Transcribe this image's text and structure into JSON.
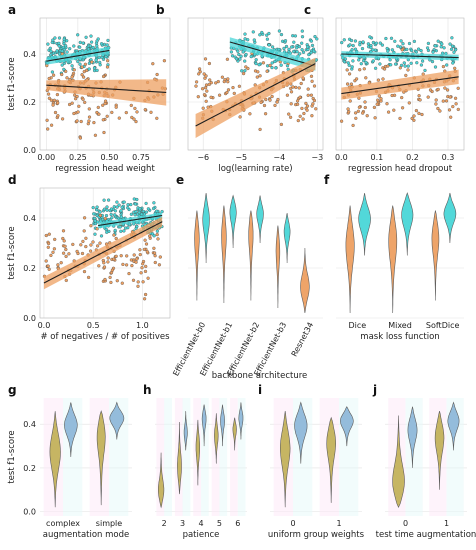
{
  "colors": {
    "cyan": "#49d6d8",
    "orange": "#eea062",
    "dark": "#1e1e1e",
    "pink_bg": "#fde7f7",
    "cyan_bg": "#e5fafa"
  },
  "chart_data": [
    {
      "id": "a",
      "type": "scatter",
      "panel_label": "a",
      "xlabel": "regression head weight",
      "ylabel": "test f1-score",
      "xlim": [
        -0.05,
        0.98
      ],
      "ylim": [
        0.0,
        0.55
      ],
      "xticks": [
        0.0,
        0.25,
        0.5,
        0.75
      ],
      "xtick_labels": [
        "0.00",
        "0.25",
        "0.50",
        "0.75"
      ],
      "yticks": [
        0.0,
        0.2,
        0.4
      ],
      "ytick_labels": [
        "0.0",
        "0.2",
        "0.4"
      ],
      "clusters": [
        {
          "color": "cyan",
          "x": [
            0,
            0.5
          ],
          "y": [
            0.3,
            0.5
          ],
          "n": 190
        },
        {
          "color": "orange",
          "x": [
            0,
            0.5
          ],
          "y": [
            0.02,
            0.45
          ],
          "n": 120
        },
        {
          "color": "orange",
          "x": [
            0.5,
            0.95
          ],
          "y": [
            0.02,
            0.45
          ],
          "n": 35
        }
      ],
      "fits": [
        {
          "color": "cyan",
          "x": [
            0.0,
            0.5
          ],
          "y": [
            0.37,
            0.415
          ],
          "band": 0.015
        },
        {
          "color": "orange",
          "x": [
            0.0,
            0.95
          ],
          "y": [
            0.27,
            0.24
          ],
          "band_start": 0.02,
          "band_end": 0.055
        }
      ]
    },
    {
      "id": "b",
      "type": "scatter",
      "panel_label": "b",
      "xlabel": "log(learning rate)",
      "ylabel": "",
      "xlim": [
        -6.4,
        -2.85
      ],
      "ylim": [
        0.0,
        0.55
      ],
      "xticks": [
        -6,
        -5,
        -4,
        -3
      ],
      "xtick_labels": [
        "−6",
        "−5",
        "−4",
        "−3"
      ],
      "yticks": [
        0.0,
        0.2,
        0.4
      ],
      "ytick_labels": [],
      "clusters": [
        {
          "color": "cyan",
          "x": [
            -5.3,
            -3.0
          ],
          "y": [
            0.3,
            0.52
          ],
          "n": 170
        },
        {
          "color": "orange",
          "x": [
            -6.2,
            -3.0
          ],
          "y": [
            0.03,
            0.43
          ],
          "n": 160
        }
      ],
      "fits": [
        {
          "color": "cyan",
          "x": [
            -5.3,
            -3.05
          ],
          "y": [
            0.45,
            0.35
          ],
          "band": 0.02
        },
        {
          "color": "orange",
          "x": [
            -6.2,
            -3.05
          ],
          "y": [
            0.1,
            0.36
          ],
          "band_start": 0.05,
          "band_end": 0.025
        }
      ]
    },
    {
      "id": "c",
      "type": "scatter",
      "panel_label": "c",
      "xlabel": "regression head dropout",
      "ylabel": "",
      "xlim": [
        -0.015,
        0.345
      ],
      "ylim": [
        0.0,
        0.55
      ],
      "xticks": [
        0.0,
        0.1,
        0.2,
        0.3
      ],
      "xtick_labels": [
        "0.0",
        "0.1",
        "0.2",
        "0.3"
      ],
      "yticks": [
        0.0,
        0.2,
        0.4
      ],
      "ytick_labels": [],
      "clusters": [
        {
          "color": "cyan",
          "x": [
            0,
            0.33
          ],
          "y": [
            0.3,
            0.5
          ],
          "n": 170
        },
        {
          "color": "orange",
          "x": [
            0,
            0.33
          ],
          "y": [
            0.03,
            0.45
          ],
          "n": 130
        }
      ],
      "fits": [
        {
          "color": "cyan",
          "x": [
            0.0,
            0.33
          ],
          "y": [
            0.4,
            0.385
          ],
          "band": 0.012
        },
        {
          "color": "orange",
          "x": [
            0.0,
            0.33
          ],
          "y": [
            0.235,
            0.305
          ],
          "band_start": 0.025,
          "band_end": 0.03
        }
      ]
    },
    {
      "id": "d",
      "type": "scatter",
      "panel_label": "d",
      "xlabel": "# of negatives / # of positives",
      "ylabel": "test f1-score",
      "xlim": [
        -0.04,
        1.28
      ],
      "ylim": [
        0.0,
        0.52
      ],
      "xticks": [
        0.0,
        0.5,
        1.0
      ],
      "xtick_labels": [
        "0.0",
        "0.5",
        "1.0"
      ],
      "yticks": [
        0.0,
        0.2,
        0.4
      ],
      "ytick_labels": [
        "0.0",
        "0.2",
        "0.4"
      ],
      "clusters": [
        {
          "color": "cyan",
          "x": [
            0.5,
            1.2
          ],
          "y": [
            0.3,
            0.5
          ],
          "n": 230
        },
        {
          "color": "orange",
          "x": [
            0.0,
            1.2
          ],
          "y": [
            0.05,
            0.45
          ],
          "n": 150
        }
      ],
      "fits": [
        {
          "color": "cyan",
          "x": [
            0.55,
            1.2
          ],
          "y": [
            0.37,
            0.41
          ],
          "band": 0.012
        },
        {
          "color": "orange",
          "x": [
            0.0,
            1.2
          ],
          "y": [
            0.14,
            0.385
          ],
          "band_start": 0.025,
          "band_end": 0.02
        }
      ]
    },
    {
      "id": "e",
      "type": "violin",
      "panel_label": "e",
      "xlabel": "backbone architecture",
      "ylabel": "",
      "ylim": [
        0.0,
        0.52
      ],
      "yticks": [
        0.0,
        0.2,
        0.4
      ],
      "categories": [
        "EfficientNet-b0",
        "EfficientNet-b1",
        "EfficientNet-b2",
        "EfficientNet-b3",
        "Resnet34"
      ],
      "violins": [
        {
          "cat": 0,
          "color": "orange",
          "min": 0.07,
          "max": 0.43,
          "peak": 0.33,
          "w": 0.75
        },
        {
          "cat": 0,
          "color": "cyan",
          "min": 0.22,
          "max": 0.5,
          "peak": 0.4,
          "w": 1.0
        },
        {
          "cat": 1,
          "color": "orange",
          "min": 0.06,
          "max": 0.45,
          "peak": 0.34,
          "w": 0.75
        },
        {
          "cat": 1,
          "color": "cyan",
          "min": 0.28,
          "max": 0.49,
          "peak": 0.43,
          "w": 1.0
        },
        {
          "cat": 2,
          "color": "orange",
          "min": 0.07,
          "max": 0.43,
          "peak": 0.35,
          "w": 0.75
        },
        {
          "cat": 2,
          "color": "cyan",
          "min": 0.3,
          "max": 0.49,
          "peak": 0.42,
          "w": 1.0
        },
        {
          "cat": 3,
          "color": "orange",
          "min": 0.04,
          "max": 0.37,
          "peak": 0.28,
          "w": 0.6
        },
        {
          "cat": 3,
          "color": "cyan",
          "min": 0.22,
          "max": 0.42,
          "peak": 0.35,
          "w": 0.9
        },
        {
          "cat": 4,
          "color": "orange",
          "min": 0.02,
          "max": 0.28,
          "peak": 0.12,
          "w": 1.3
        }
      ]
    },
    {
      "id": "f",
      "type": "violin",
      "panel_label": "f",
      "xlabel": "mask loss function",
      "ylabel": "",
      "ylim": [
        0.0,
        0.52
      ],
      "yticks": [
        0.0,
        0.2,
        0.4
      ],
      "categories": [
        "Dice",
        "Mixed",
        "SoftDice"
      ],
      "violins": [
        {
          "cat": 0,
          "color": "orange",
          "min": 0.02,
          "max": 0.45,
          "peak": 0.3,
          "w": 0.8
        },
        {
          "cat": 0,
          "color": "cyan",
          "min": 0.25,
          "max": 0.5,
          "peak": 0.4,
          "w": 1.1
        },
        {
          "cat": 1,
          "color": "orange",
          "min": 0.02,
          "max": 0.45,
          "peak": 0.32,
          "w": 0.8
        },
        {
          "cat": 1,
          "color": "cyan",
          "min": 0.25,
          "max": 0.5,
          "peak": 0.42,
          "w": 1.1
        },
        {
          "cat": 2,
          "color": "orange",
          "min": 0.07,
          "max": 0.43,
          "peak": 0.33,
          "w": 0.7
        },
        {
          "cat": 2,
          "color": "cyan",
          "min": 0.3,
          "max": 0.5,
          "peak": 0.42,
          "w": 1.1
        }
      ]
    },
    {
      "id": "g",
      "type": "violin",
      "panel_label": "g",
      "xlabel": "augmentation mode",
      "ylabel": "test f1-score",
      "ylim": [
        -0.02,
        0.52
      ],
      "yticks": [
        0.0,
        0.2,
        0.4
      ],
      "ytick_labels": [
        "0.0",
        "0.2",
        "0.4"
      ],
      "categories": [
        "complex",
        "simple"
      ],
      "violins": [
        {
          "cat": 0,
          "color": "olive",
          "min": 0.02,
          "max": 0.46,
          "peak": 0.28,
          "w": 0.9
        },
        {
          "cat": 0,
          "color": "blue",
          "min": 0.25,
          "max": 0.5,
          "peak": 0.4,
          "w": 1.1
        },
        {
          "cat": 1,
          "color": "olive",
          "min": 0.03,
          "max": 0.46,
          "peak": 0.36,
          "w": 0.8
        },
        {
          "cat": 1,
          "color": "blue",
          "min": 0.33,
          "max": 0.5,
          "peak": 0.43,
          "w": 1.2
        }
      ]
    },
    {
      "id": "h",
      "type": "violin",
      "panel_label": "h",
      "xlabel": "patience",
      "ylabel": "",
      "ylim": [
        -0.02,
        0.52
      ],
      "yticks": [
        0.0,
        0.2,
        0.4
      ],
      "categories": [
        "2",
        "3",
        "4",
        "5",
        "6"
      ],
      "violins": [
        {
          "cat": 0,
          "color": "olive",
          "min": 0.02,
          "max": 0.27,
          "peak": 0.09,
          "w": 1.3
        },
        {
          "cat": 1,
          "color": "olive",
          "min": 0.08,
          "max": 0.41,
          "peak": 0.2,
          "w": 0.9
        },
        {
          "cat": 1,
          "color": "blue",
          "min": 0.28,
          "max": 0.46,
          "peak": 0.36,
          "w": 0.7
        },
        {
          "cat": 2,
          "color": "olive",
          "min": 0.12,
          "max": 0.42,
          "peak": 0.3,
          "w": 0.8
        },
        {
          "cat": 2,
          "color": "blue",
          "min": 0.3,
          "max": 0.49,
          "peak": 0.43,
          "w": 0.9
        },
        {
          "cat": 3,
          "color": "olive",
          "min": 0.22,
          "max": 0.45,
          "peak": 0.35,
          "w": 0.8
        },
        {
          "cat": 3,
          "color": "blue",
          "min": 0.3,
          "max": 0.49,
          "peak": 0.42,
          "w": 0.9
        },
        {
          "cat": 4,
          "color": "olive",
          "min": 0.28,
          "max": 0.43,
          "peak": 0.38,
          "w": 0.8
        },
        {
          "cat": 4,
          "color": "blue",
          "min": 0.33,
          "max": 0.5,
          "peak": 0.43,
          "w": 0.9
        }
      ]
    },
    {
      "id": "i",
      "type": "violin",
      "panel_label": "i",
      "xlabel": "uniform group weights",
      "ylabel": "",
      "ylim": [
        -0.02,
        0.52
      ],
      "yticks": [
        0.0,
        0.2,
        0.4
      ],
      "categories": [
        "0",
        "1"
      ],
      "violins": [
        {
          "cat": 0,
          "color": "olive",
          "min": 0.02,
          "max": 0.46,
          "peak": 0.3,
          "w": 0.85
        },
        {
          "cat": 0,
          "color": "blue",
          "min": 0.22,
          "max": 0.5,
          "peak": 0.4,
          "w": 1.1
        },
        {
          "cat": 1,
          "color": "olive",
          "min": 0.04,
          "max": 0.43,
          "peak": 0.33,
          "w": 0.85
        },
        {
          "cat": 1,
          "color": "blue",
          "min": 0.3,
          "max": 0.48,
          "peak": 0.42,
          "w": 1.15
        }
      ]
    },
    {
      "id": "j",
      "type": "violin",
      "panel_label": "j",
      "xlabel": "test time augmentation",
      "ylabel": "",
      "ylim": [
        -0.02,
        0.52
      ],
      "yticks": [
        0.0,
        0.2,
        0.4
      ],
      "categories": [
        "0",
        "1"
      ],
      "violins": [
        {
          "cat": 0,
          "color": "olive",
          "min": 0.02,
          "max": 0.44,
          "peak": 0.12,
          "w": 1.3
        },
        {
          "cat": 0,
          "color": "blue",
          "min": 0.2,
          "max": 0.48,
          "peak": 0.38,
          "w": 0.9
        },
        {
          "cat": 1,
          "color": "olive",
          "min": 0.1,
          "max": 0.46,
          "peak": 0.35,
          "w": 0.9
        },
        {
          "cat": 1,
          "color": "blue",
          "min": 0.28,
          "max": 0.5,
          "peak": 0.42,
          "w": 1.1
        }
      ]
    }
  ]
}
